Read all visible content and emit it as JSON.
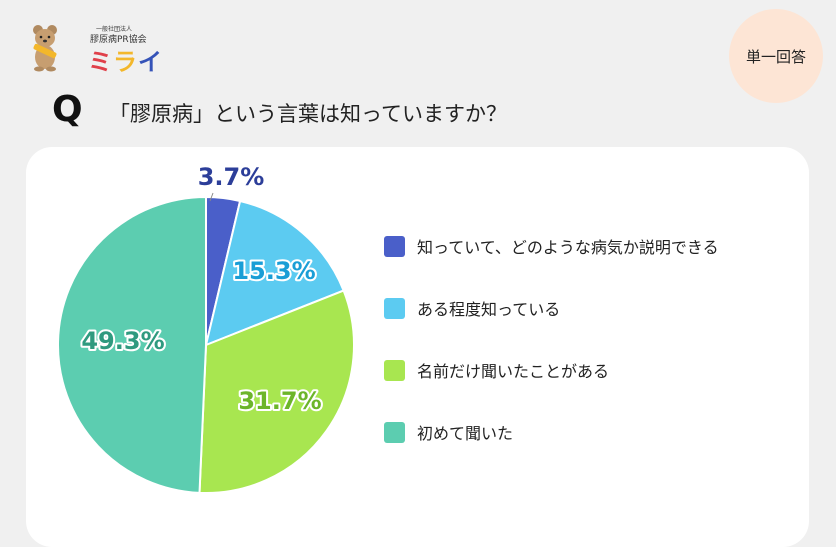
{
  "logo": {
    "small_text": "一般社団法人",
    "org_text": "膠原病PR協会",
    "name_chars": [
      "ミ",
      "ラ",
      "イ"
    ],
    "icon": "quokka-mascot-icon"
  },
  "badge": {
    "label": "単一回答"
  },
  "question": {
    "mark": "Q",
    "text": "「膠原病」という言葉は知っていますか？"
  },
  "chart_data": {
    "type": "pie",
    "title": "「膠原病」という言葉は知っていますか？",
    "categories": [
      "知っていて、どのような病気か説明できる",
      "ある程度知っている",
      "名前だけ聞いたことがある",
      "初めて聞いた"
    ],
    "values": [
      3.7,
      15.3,
      31.7,
      49.3
    ],
    "labels": [
      "3.7%",
      "15.3%",
      "31.7%",
      "49.3%"
    ],
    "colors": [
      "#4a5fc9",
      "#5ccbf1",
      "#a8e650",
      "#5ccdb0"
    ],
    "label_colors": [
      "#2c3e99",
      "#1a9ed6",
      "#6cb52a",
      "#2f9a7f"
    ],
    "start_angle": "12 o'clock, clockwise",
    "legend_position": "right"
  },
  "legend": {
    "items": [
      {
        "label": "知っていて、どのような病気か説明できる",
        "color": "#4a5fc9"
      },
      {
        "label": "ある程度知っている",
        "color": "#5ccbf1"
      },
      {
        "label": "名前だけ聞いたことがある",
        "color": "#a8e650"
      },
      {
        "label": "初めて聞いた",
        "color": "#5ccdb0"
      }
    ]
  }
}
